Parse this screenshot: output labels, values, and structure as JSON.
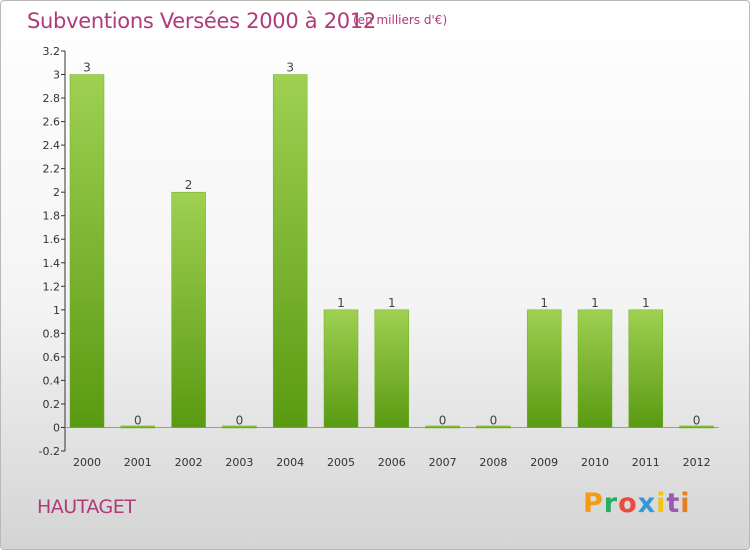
{
  "header": {
    "title": "Subventions Versées 2000 à 2012",
    "unit": "(en milliers d'€)"
  },
  "footer": {
    "commune": "HAUTAGET",
    "logo_letters": [
      "P",
      "r",
      "o",
      "x",
      "i",
      "t",
      "i"
    ]
  },
  "colors": {
    "title": "#b03a7a",
    "bar_top": "#9fd052",
    "bar_bottom": "#5a9a12",
    "logo": [
      "#f39c12",
      "#27ae60",
      "#e74c3c",
      "#3498db",
      "#f1c40f",
      "#9b59b6",
      "#e67e22"
    ]
  },
  "chart_data": {
    "type": "bar",
    "categories": [
      "2000",
      "2001",
      "2002",
      "2003",
      "2004",
      "2005",
      "2006",
      "2007",
      "2008",
      "2009",
      "2010",
      "2011",
      "2012"
    ],
    "values": [
      3,
      0,
      2,
      0,
      3,
      1,
      1,
      0,
      0,
      1,
      1,
      1,
      0
    ],
    "ylim": [
      -0.2,
      3.2
    ],
    "yticks": [
      "-0.2",
      "0",
      "0.2",
      "0.4",
      "0.6",
      "0.8",
      "1",
      "1.2",
      "1.4",
      "1.6",
      "1.8",
      "2",
      "2.2",
      "2.4",
      "2.6",
      "2.8",
      "3",
      "3.2"
    ],
    "grid": false
  }
}
